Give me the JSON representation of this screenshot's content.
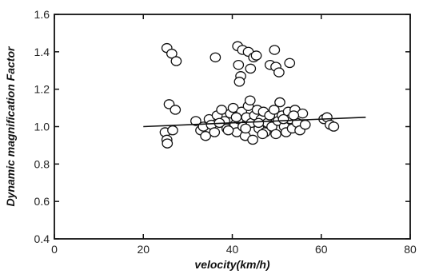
{
  "chart_data": {
    "type": "scatter",
    "title": "",
    "xlabel": "velocity(km/h)",
    "ylabel": "Dynamic magnification Factor",
    "xlim": [
      0,
      80
    ],
    "ylim": [
      0.4,
      1.6
    ],
    "x_ticks": [
      "0",
      "20",
      "40",
      "60",
      "80"
    ],
    "y_ticks": [
      "0.4",
      "0.6",
      "0.8",
      "1.0",
      "1.2",
      "1.4",
      "1.6"
    ],
    "grid": false,
    "legend": "none",
    "series": [
      {
        "points": [
          [
            25.3,
            1.42
          ],
          [
            26.4,
            1.39
          ],
          [
            27.4,
            1.35
          ],
          [
            36.2,
            1.37
          ],
          [
            41.2,
            1.43
          ],
          [
            42.3,
            1.41
          ],
          [
            43.6,
            1.4
          ],
          [
            44.8,
            1.37
          ],
          [
            45.4,
            1.38
          ],
          [
            49.5,
            1.41
          ],
          [
            48.5,
            1.33
          ],
          [
            49.8,
            1.32
          ],
          [
            50.5,
            1.29
          ],
          [
            52.9,
            1.34
          ],
          [
            41.4,
            1.33
          ],
          [
            44.1,
            1.31
          ],
          [
            41.9,
            1.27
          ],
          [
            41.6,
            1.24
          ],
          [
            25.8,
            1.12
          ],
          [
            27.2,
            1.09
          ],
          [
            24.9,
            0.97
          ],
          [
            25.3,
            0.93
          ],
          [
            25.4,
            0.91
          ],
          [
            26.6,
            0.98
          ],
          [
            31.8,
            1.03
          ],
          [
            32.9,
            0.98
          ],
          [
            33.5,
            1.0
          ],
          [
            34.0,
            0.95
          ],
          [
            34.8,
            1.04
          ],
          [
            35.3,
            1.01
          ],
          [
            36.0,
            0.97
          ],
          [
            36.6,
            1.06
          ],
          [
            37.6,
            1.09
          ],
          [
            38.3,
            1.03
          ],
          [
            38.8,
            0.99
          ],
          [
            39.6,
            1.07
          ],
          [
            40.2,
            1.1
          ],
          [
            40.6,
            1.01
          ],
          [
            41.0,
            0.97
          ],
          [
            41.4,
            1.04
          ],
          [
            42.1,
            1.08
          ],
          [
            42.4,
            1.0
          ],
          [
            42.9,
            0.95
          ],
          [
            43.2,
            1.05
          ],
          [
            43.6,
            1.11
          ],
          [
            44.0,
            1.14
          ],
          [
            44.3,
            1.02
          ],
          [
            44.6,
            0.93
          ],
          [
            45.0,
            1.06
          ],
          [
            45.6,
            1.09
          ],
          [
            46.0,
            0.99
          ],
          [
            46.5,
            1.04
          ],
          [
            47.0,
            1.08
          ],
          [
            47.4,
            0.97
          ],
          [
            47.9,
            1.02
          ],
          [
            48.4,
            1.06
          ],
          [
            48.9,
            1.0
          ],
          [
            49.4,
            1.09
          ],
          [
            49.8,
            0.96
          ],
          [
            50.3,
            1.03
          ],
          [
            50.7,
            1.13
          ],
          [
            51.2,
            1.06
          ],
          [
            51.7,
            1.0
          ],
          [
            52.1,
            0.97
          ],
          [
            52.6,
            1.08
          ],
          [
            53.0,
            1.04
          ],
          [
            53.5,
            0.99
          ],
          [
            54.1,
            1.09
          ],
          [
            54.6,
            1.02
          ],
          [
            55.2,
            0.98
          ],
          [
            55.8,
            1.07
          ],
          [
            56.4,
            1.01
          ],
          [
            60.6,
            1.04
          ],
          [
            61.3,
            1.05
          ],
          [
            62.0,
            1.01
          ],
          [
            62.8,
            1.0
          ],
          [
            39.1,
            0.98
          ],
          [
            40.9,
            1.05
          ],
          [
            43.0,
            0.99
          ],
          [
            45.9,
            1.02
          ],
          [
            46.8,
            0.96
          ],
          [
            51.5,
            1.04
          ],
          [
            53.8,
            1.06
          ],
          [
            37.1,
            1.02
          ]
        ]
      }
    ],
    "trend_line": {
      "x": [
        20,
        70
      ],
      "y": [
        1.0,
        1.05
      ]
    }
  }
}
